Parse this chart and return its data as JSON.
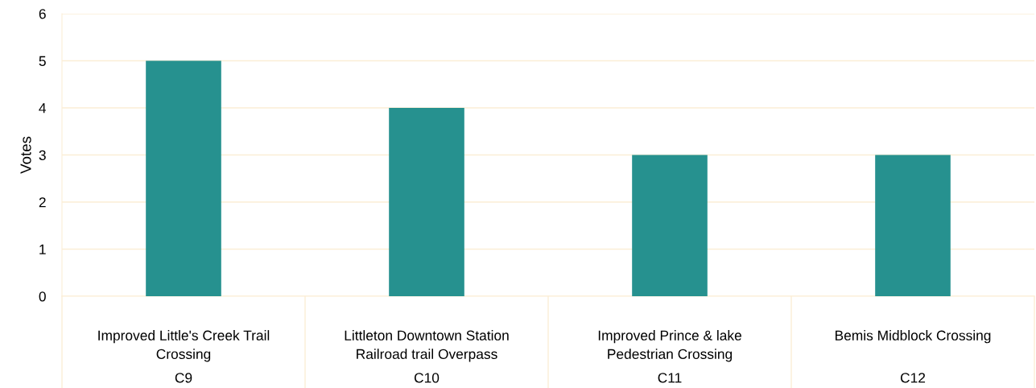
{
  "chart_data": {
    "type": "bar",
    "ylabel": "Votes",
    "categories": [
      "Improved Little's Creek Trail Crossing",
      "Littleton Downtown Station Railroad trail Overpass",
      "Improved Prince & lake Pedestrian Crossing",
      "Bemis Midblock Crossing"
    ],
    "values": [
      5,
      4,
      3,
      3
    ],
    "color": "#26918f",
    "ylim": [
      0,
      6
    ],
    "yticks": [
      0,
      1,
      2,
      3,
      4,
      5,
      6
    ],
    "grid": "y",
    "annotations": [
      "C9",
      "C10",
      "C11",
      "C12"
    ]
  }
}
